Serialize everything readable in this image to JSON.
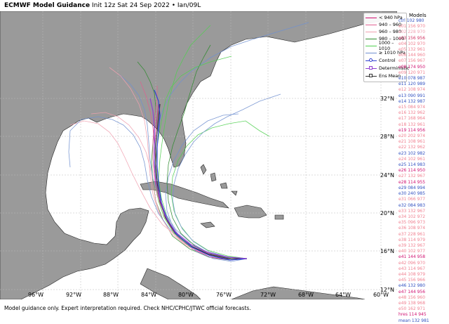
{
  "title": {
    "bold": "ECMWF Model Guidance",
    "rest": " Init 12z Sat 24 Sep 2022 • Ian/09L"
  },
  "footer": "Model guidance only. Expert interpretation required. Check NHC/CPHC/JTWC official forecasts.",
  "lon_labels": [
    "96°W",
    "92°W",
    "88°W",
    "84°W",
    "80°W",
    "76°W",
    "72°W",
    "68°W",
    "64°W",
    "60°W"
  ],
  "lat_labels": [
    "32°N",
    "28°N",
    "24°N",
    "20°N",
    "16°N",
    "12°N"
  ],
  "legend": [
    {
      "label": "< 940 hPa",
      "color": "#d01070"
    },
    {
      "label": "940 – 960",
      "color": "#e06090"
    },
    {
      "label": "960 – 980",
      "color": "#f0a0b0"
    },
    {
      "label": "980 – 1000",
      "color": "#2e8b2e"
    },
    {
      "label": "1000 – 1010",
      "color": "#50d050"
    },
    {
      "label": "≥ 1010 hPa",
      "color": "#7090d0"
    },
    {
      "label": "Control",
      "color": "#3040d0",
      "marker": "circle"
    },
    {
      "label": "Deterministic",
      "color": "#9040d0",
      "marker": "triangle"
    },
    {
      "label": "Ens Mean",
      "color": "#333333",
      "marker": "square"
    }
  ],
  "models_title": "Models",
  "models": [
    {
      "t": "ctrl 102 980",
      "c": "#3050c0"
    },
    {
      "t": "e01 156 970",
      "c": "#f08090"
    },
    {
      "t": "e02 228 970",
      "c": "#f0a0b0"
    },
    {
      "t": "e03 156 956",
      "c": "#d03060"
    },
    {
      "t": "e04 102 970",
      "c": "#f08090"
    },
    {
      "t": "e05 132 961",
      "c": "#f08090"
    },
    {
      "t": "e06 144 960",
      "c": "#f08090"
    },
    {
      "t": "e07 156 967",
      "c": "#f08090"
    },
    {
      "t": "e08 174 950",
      "c": "#d01070"
    },
    {
      "t": "e09 120 971",
      "c": "#f08090"
    },
    {
      "t": "e10 078 987",
      "c": "#3050c0"
    },
    {
      "t": "e11 120 989",
      "c": "#3050c0"
    },
    {
      "t": "e12 108 974",
      "c": "#f08090"
    },
    {
      "t": "e13 090 991",
      "c": "#3050c0"
    },
    {
      "t": "e14 132 987",
      "c": "#3050c0"
    },
    {
      "t": "e15 084 974",
      "c": "#f08090"
    },
    {
      "t": "e16 132 962",
      "c": "#f08090"
    },
    {
      "t": "e17 168 964",
      "c": "#f08090"
    },
    {
      "t": "e18 132 961",
      "c": "#f08090"
    },
    {
      "t": "e19 114 956",
      "c": "#d01070"
    },
    {
      "t": "e20 202 974",
      "c": "#f08090"
    },
    {
      "t": "e21 108 961",
      "c": "#f08090"
    },
    {
      "t": "e22 132 962",
      "c": "#f08090"
    },
    {
      "t": "e23 102 982",
      "c": "#3050c0"
    },
    {
      "t": "e24 102 961",
      "c": "#f08090"
    },
    {
      "t": "e25 114 983",
      "c": "#3050c0"
    },
    {
      "t": "e26 114 950",
      "c": "#d01070"
    },
    {
      "t": "e27 132 967",
      "c": "#f08090"
    },
    {
      "t": "e28 114 955",
      "c": "#d01070"
    },
    {
      "t": "e29 084 994",
      "c": "#3050c0"
    },
    {
      "t": "e30 240 985",
      "c": "#3050c0"
    },
    {
      "t": "e31 066 977",
      "c": "#f08090"
    },
    {
      "t": "e32 084 983",
      "c": "#3050c0"
    },
    {
      "t": "e33 132 967",
      "c": "#f08090"
    },
    {
      "t": "e34 102 972",
      "c": "#f08090"
    },
    {
      "t": "e35 096 973",
      "c": "#f08090"
    },
    {
      "t": "e36 108 974",
      "c": "#f08090"
    },
    {
      "t": "e37 228 961",
      "c": "#f08090"
    },
    {
      "t": "e38 114 979",
      "c": "#f08090"
    },
    {
      "t": "e39 132 967",
      "c": "#f08090"
    },
    {
      "t": "e40 102 977",
      "c": "#f08090"
    },
    {
      "t": "e41 144 958",
      "c": "#d01070"
    },
    {
      "t": "e42 096 970",
      "c": "#f08090"
    },
    {
      "t": "e43 114 967",
      "c": "#f08090"
    },
    {
      "t": "e44 108 979",
      "c": "#f08090"
    },
    {
      "t": "e45 156 966",
      "c": "#f08090"
    },
    {
      "t": "e46 132 980",
      "c": "#3050c0"
    },
    {
      "t": "e47 144 956",
      "c": "#d01070"
    },
    {
      "t": "e48 156 960",
      "c": "#f08090"
    },
    {
      "t": "e49 138 968",
      "c": "#f08090"
    },
    {
      "t": "e50 162 971",
      "c": "#f08090"
    },
    {
      "t": "hres 114 945",
      "c": "#d01070"
    },
    {
      "t": "mean 132 981",
      "c": "#3050c0"
    }
  ],
  "colors": {
    "ocean": "#ffffff",
    "land": "#9a9a9a",
    "land_edge": "#222222",
    "grid": "#b8b8b8"
  }
}
